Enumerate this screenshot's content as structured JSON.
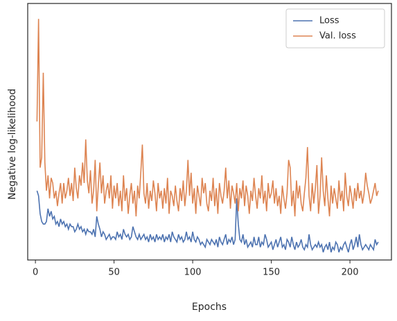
{
  "chart_data": {
    "type": "line",
    "xlabel": "Epochs",
    "ylabel": "Negative log-likelihood",
    "xlim": [
      -4.9,
      226.4
    ],
    "xticks": [
      0,
      50,
      100,
      150,
      200
    ],
    "ylim": [
      0,
      100
    ],
    "legend": "upper right",
    "x": [
      1,
      2,
      3,
      4,
      5,
      6,
      7,
      8,
      9,
      10,
      11,
      12,
      13,
      14,
      15,
      16,
      17,
      18,
      19,
      20,
      21,
      22,
      23,
      24,
      25,
      26,
      27,
      28,
      29,
      30,
      31,
      32,
      33,
      34,
      35,
      36,
      37,
      38,
      39,
      40,
      41,
      42,
      43,
      44,
      45,
      46,
      47,
      48,
      49,
      50,
      51,
      52,
      53,
      54,
      55,
      56,
      57,
      58,
      59,
      60,
      61,
      62,
      63,
      64,
      65,
      66,
      67,
      68,
      69,
      70,
      71,
      72,
      73,
      74,
      75,
      76,
      77,
      78,
      79,
      80,
      81,
      82,
      83,
      84,
      85,
      86,
      87,
      88,
      89,
      90,
      91,
      92,
      93,
      94,
      95,
      96,
      97,
      98,
      99,
      100,
      101,
      102,
      103,
      104,
      105,
      106,
      107,
      108,
      109,
      110,
      111,
      112,
      113,
      114,
      115,
      116,
      117,
      118,
      119,
      120,
      121,
      122,
      123,
      124,
      125,
      126,
      127,
      128,
      129,
      130,
      131,
      132,
      133,
      134,
      135,
      136,
      137,
      138,
      139,
      140,
      141,
      142,
      143,
      144,
      145,
      146,
      147,
      148,
      149,
      150,
      151,
      152,
      153,
      154,
      155,
      156,
      157,
      158,
      159,
      160,
      161,
      162,
      163,
      164,
      165,
      166,
      167,
      168,
      169,
      170,
      171,
      172,
      173,
      174,
      175,
      176,
      177,
      178,
      179,
      180,
      181,
      182,
      183,
      184,
      185,
      186,
      187,
      188,
      189,
      190,
      191,
      192,
      193,
      194,
      195,
      196,
      197,
      198,
      199,
      200,
      201,
      202,
      203,
      204,
      205,
      206,
      207,
      208,
      209,
      210,
      211,
      212,
      213,
      214,
      215,
      216,
      217,
      218
    ],
    "series": [
      {
        "name": "Loss",
        "color": "#4c72b0",
        "values": [
          27,
          25,
          18,
          15,
          14,
          14,
          15,
          20,
          17,
          19,
          16,
          17,
          14,
          15,
          13,
          16,
          14,
          15,
          13,
          14,
          12,
          14,
          13,
          13,
          11,
          12,
          14,
          12,
          13,
          11,
          12,
          10,
          12,
          11,
          11,
          10,
          12,
          9,
          17,
          14,
          12,
          9,
          11,
          10,
          8,
          9,
          10,
          8,
          9,
          9,
          8,
          11,
          9,
          10,
          8,
          12,
          10,
          9,
          10,
          8,
          9,
          13,
          11,
          9,
          8,
          10,
          8,
          9,
          10,
          8,
          9,
          7,
          10,
          8,
          9,
          7,
          10,
          8,
          9,
          8,
          10,
          7,
          9,
          8,
          10,
          7,
          11,
          9,
          8,
          7,
          10,
          8,
          9,
          7,
          8,
          11,
          8,
          9,
          7,
          11,
          8,
          7,
          9,
          8,
          6,
          7,
          6,
          5,
          8,
          7,
          6,
          8,
          7,
          6,
          8,
          5,
          9,
          7,
          6,
          8,
          10,
          6,
          8,
          7,
          9,
          6,
          8,
          24,
          14,
          8,
          7,
          10,
          6,
          8,
          5,
          6,
          7,
          5,
          9,
          6,
          6,
          9,
          5,
          7,
          6,
          10,
          8,
          5,
          6,
          7,
          4,
          6,
          8,
          5,
          7,
          9,
          5,
          6,
          4,
          8,
          7,
          5,
          9,
          6,
          4,
          7,
          5,
          6,
          8,
          5,
          4,
          6,
          5,
          10,
          6,
          4,
          5,
          6,
          5,
          7,
          5,
          6,
          3,
          5,
          6,
          4,
          7,
          3,
          5,
          4,
          7,
          6,
          3,
          5,
          4,
          6,
          7,
          5,
          3,
          6,
          8,
          4,
          6,
          9,
          5,
          10,
          6,
          4,
          5,
          6,
          5,
          4,
          6,
          5,
          4,
          8,
          6,
          7
        ]
      },
      {
        "name": "Val. loss",
        "color": "#dd8452",
        "values": [
          54,
          94,
          36,
          40,
          73,
          38,
          27,
          33,
          24,
          32,
          30,
          24,
          27,
          21,
          26,
          30,
          22,
          30,
          24,
          27,
          32,
          25,
          30,
          23,
          36,
          28,
          24,
          33,
          29,
          38,
          30,
          47,
          31,
          26,
          35,
          22,
          27,
          39,
          19,
          29,
          38,
          26,
          33,
          22,
          27,
          30,
          24,
          33,
          20,
          29,
          24,
          30,
          21,
          27,
          19,
          33,
          23,
          28,
          18,
          25,
          30,
          22,
          27,
          17,
          29,
          24,
          34,
          45,
          26,
          22,
          30,
          20,
          27,
          23,
          31,
          26,
          19,
          30,
          24,
          27,
          20,
          28,
          22,
          32,
          18,
          27,
          25,
          21,
          29,
          23,
          19,
          28,
          23,
          31,
          21,
          27,
          39,
          25,
          34,
          22,
          28,
          18,
          29,
          25,
          21,
          32,
          26,
          30,
          22,
          19,
          27,
          23,
          32,
          21,
          28,
          18,
          30,
          25,
          22,
          27,
          36,
          24,
          31,
          20,
          29,
          26,
          22,
          30,
          19,
          28,
          24,
          31,
          21,
          29,
          25,
          18,
          27,
          23,
          32,
          25,
          20,
          28,
          24,
          33,
          22,
          27,
          19,
          30,
          24,
          26,
          31,
          22,
          28,
          21,
          25,
          18,
          29,
          24,
          20,
          26,
          39,
          36,
          21,
          27,
          17,
          31,
          24,
          29,
          22,
          19,
          26,
          32,
          44,
          25,
          19,
          30,
          22,
          28,
          37,
          18,
          25,
          40,
          27,
          21,
          33,
          24,
          17,
          29,
          22,
          28,
          24,
          20,
          31,
          23,
          27,
          19,
          34,
          25,
          21,
          29,
          25,
          20,
          28,
          23,
          30,
          24,
          27,
          22,
          26,
          34,
          29,
          26,
          22,
          24,
          27,
          30,
          25,
          27
        ]
      }
    ]
  }
}
